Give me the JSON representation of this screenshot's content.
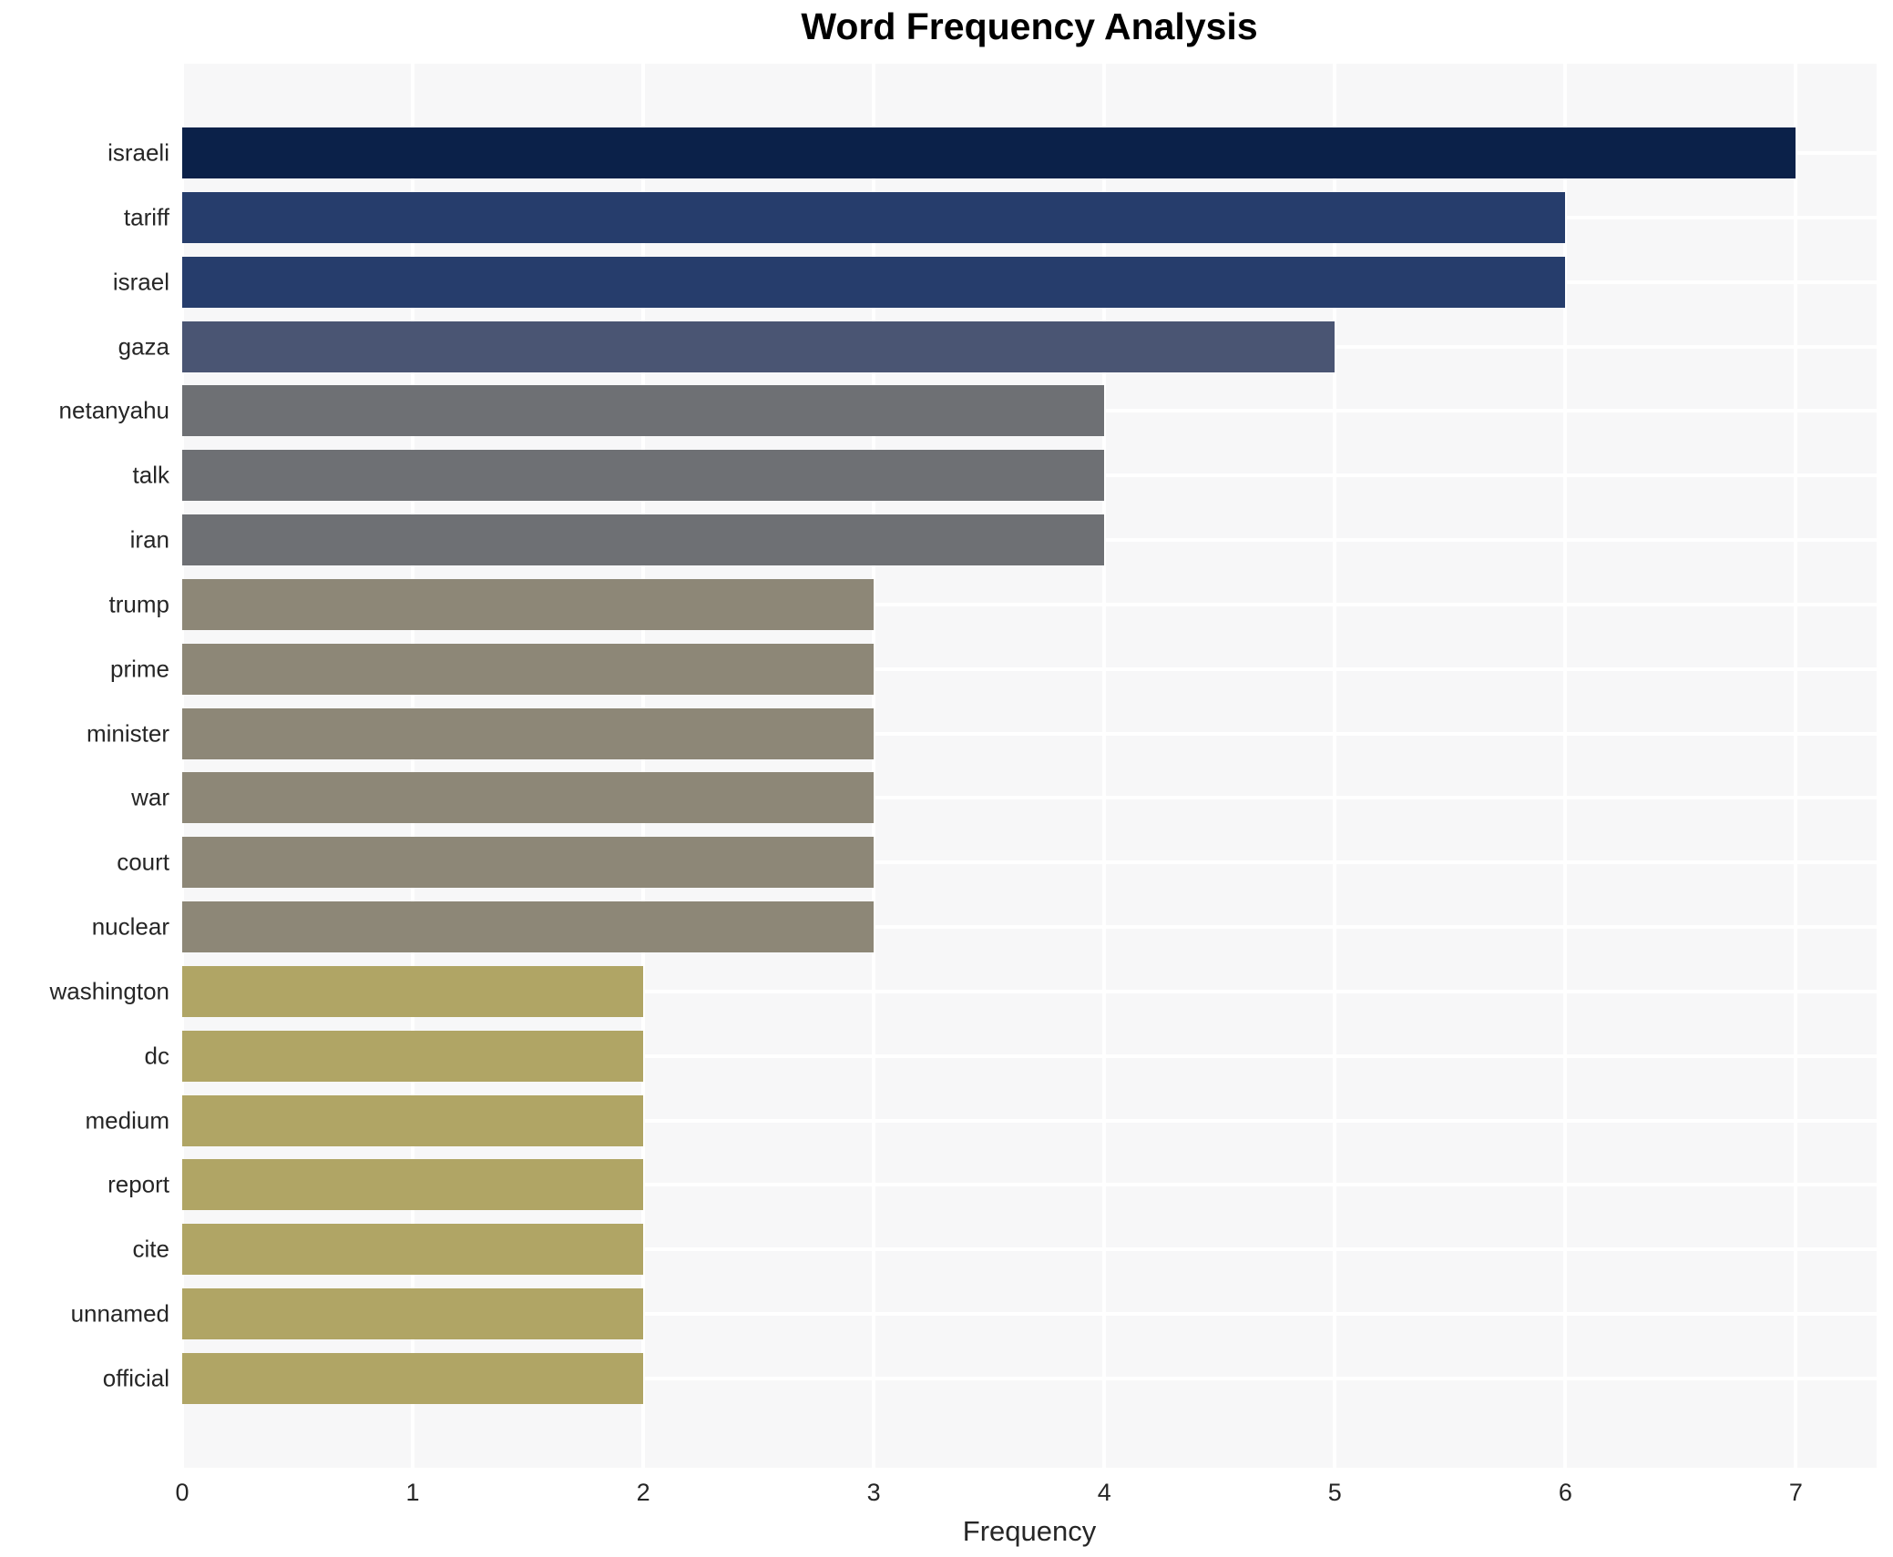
{
  "title": "Word Frequency Analysis",
  "chart_data": {
    "type": "bar",
    "orientation": "horizontal",
    "title": "Word Frequency Analysis",
    "xlabel": "Frequency",
    "ylabel": "",
    "categories": [
      "israeli",
      "tariff",
      "israel",
      "gaza",
      "netanyahu",
      "talk",
      "iran",
      "trump",
      "prime",
      "minister",
      "war",
      "court",
      "nuclear",
      "washington",
      "dc",
      "medium",
      "report",
      "cite",
      "unnamed",
      "official"
    ],
    "values": [
      7,
      6,
      6,
      5,
      4,
      4,
      4,
      3,
      3,
      3,
      3,
      3,
      3,
      2,
      2,
      2,
      2,
      2,
      2,
      2
    ],
    "xticks": [
      "0",
      "1",
      "2",
      "3",
      "4",
      "5",
      "6",
      "7"
    ],
    "xlim": [
      0,
      7.35
    ],
    "grid": true,
    "legend": false,
    "colors": {
      "value_7": "#0b2149",
      "value_6": "#263d6c",
      "value_5": "#4a5573",
      "value_4": "#6e7074",
      "value_3": "#8d8777",
      "value_2": "#b0a565",
      "plot_background": "#f7f7f8",
      "grid_line": "#ffffff",
      "tick_text": "#262626",
      "title_text": "#000000"
    }
  }
}
